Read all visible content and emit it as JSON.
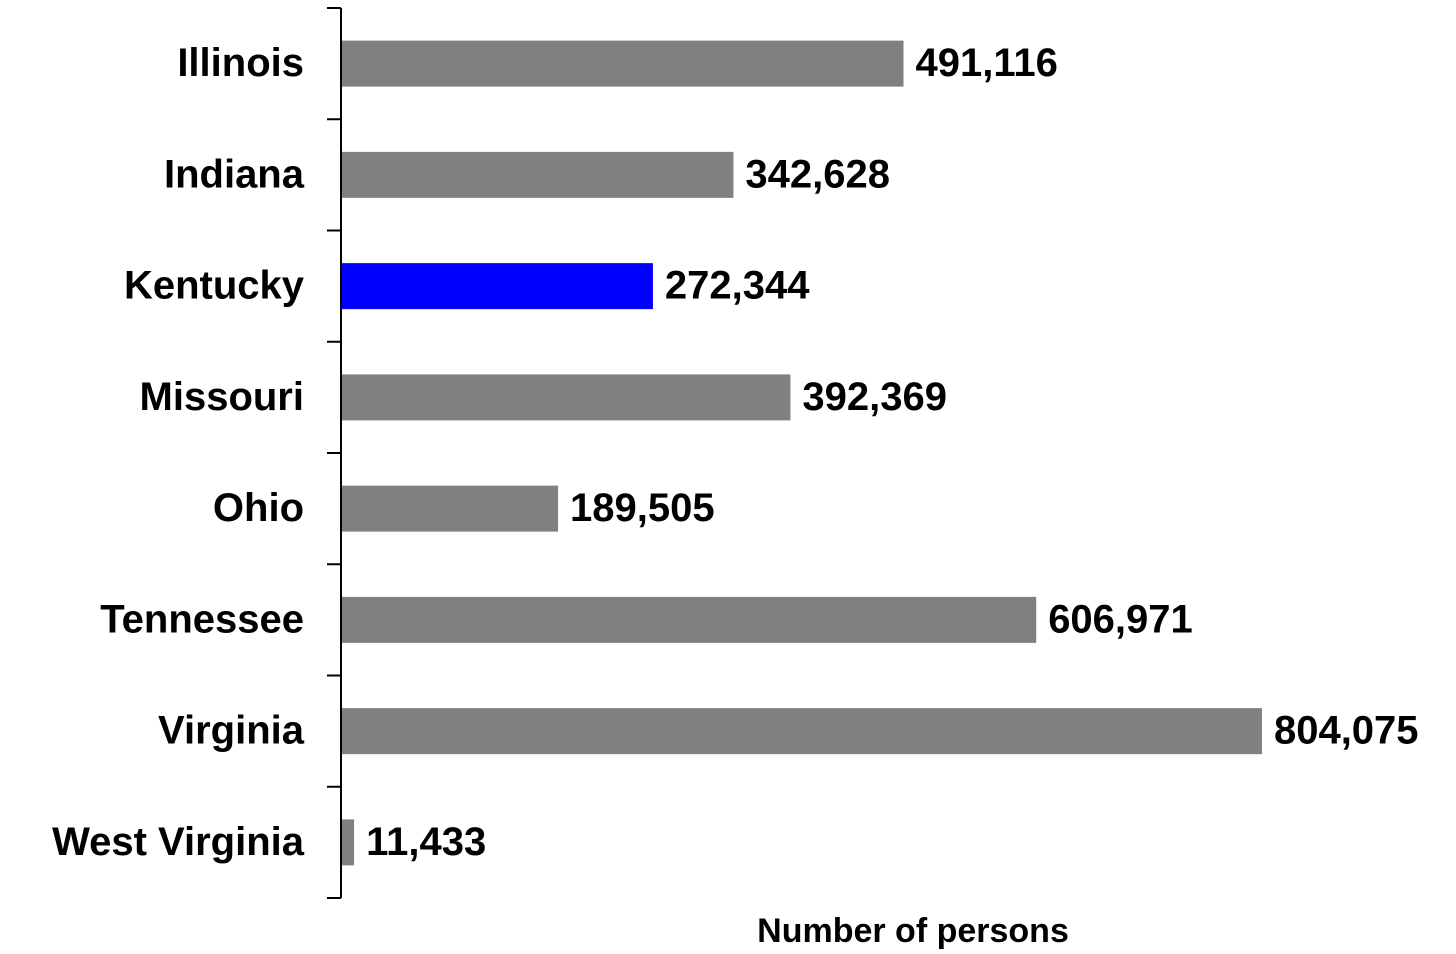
{
  "chart_data": {
    "type": "bar",
    "orientation": "horizontal",
    "categories": [
      "Illinois",
      "Indiana",
      "Kentucky",
      "Missouri",
      "Ohio",
      "Tennessee",
      "Virginia",
      "West Virginia"
    ],
    "values": [
      491116,
      342628,
      272344,
      392369,
      189505,
      606971,
      804075,
      11433
    ],
    "value_labels": [
      "491,116",
      "342,628",
      "272,344",
      "392,369",
      "189,505",
      "606,971",
      "804,075",
      "11,433"
    ],
    "colors": [
      "#808080",
      "#808080",
      "#0000ff",
      "#808080",
      "#808080",
      "#808080",
      "#808080",
      "#808080"
    ],
    "xlabel": "Number of persons",
    "xlim": [
      0,
      970000
    ]
  }
}
